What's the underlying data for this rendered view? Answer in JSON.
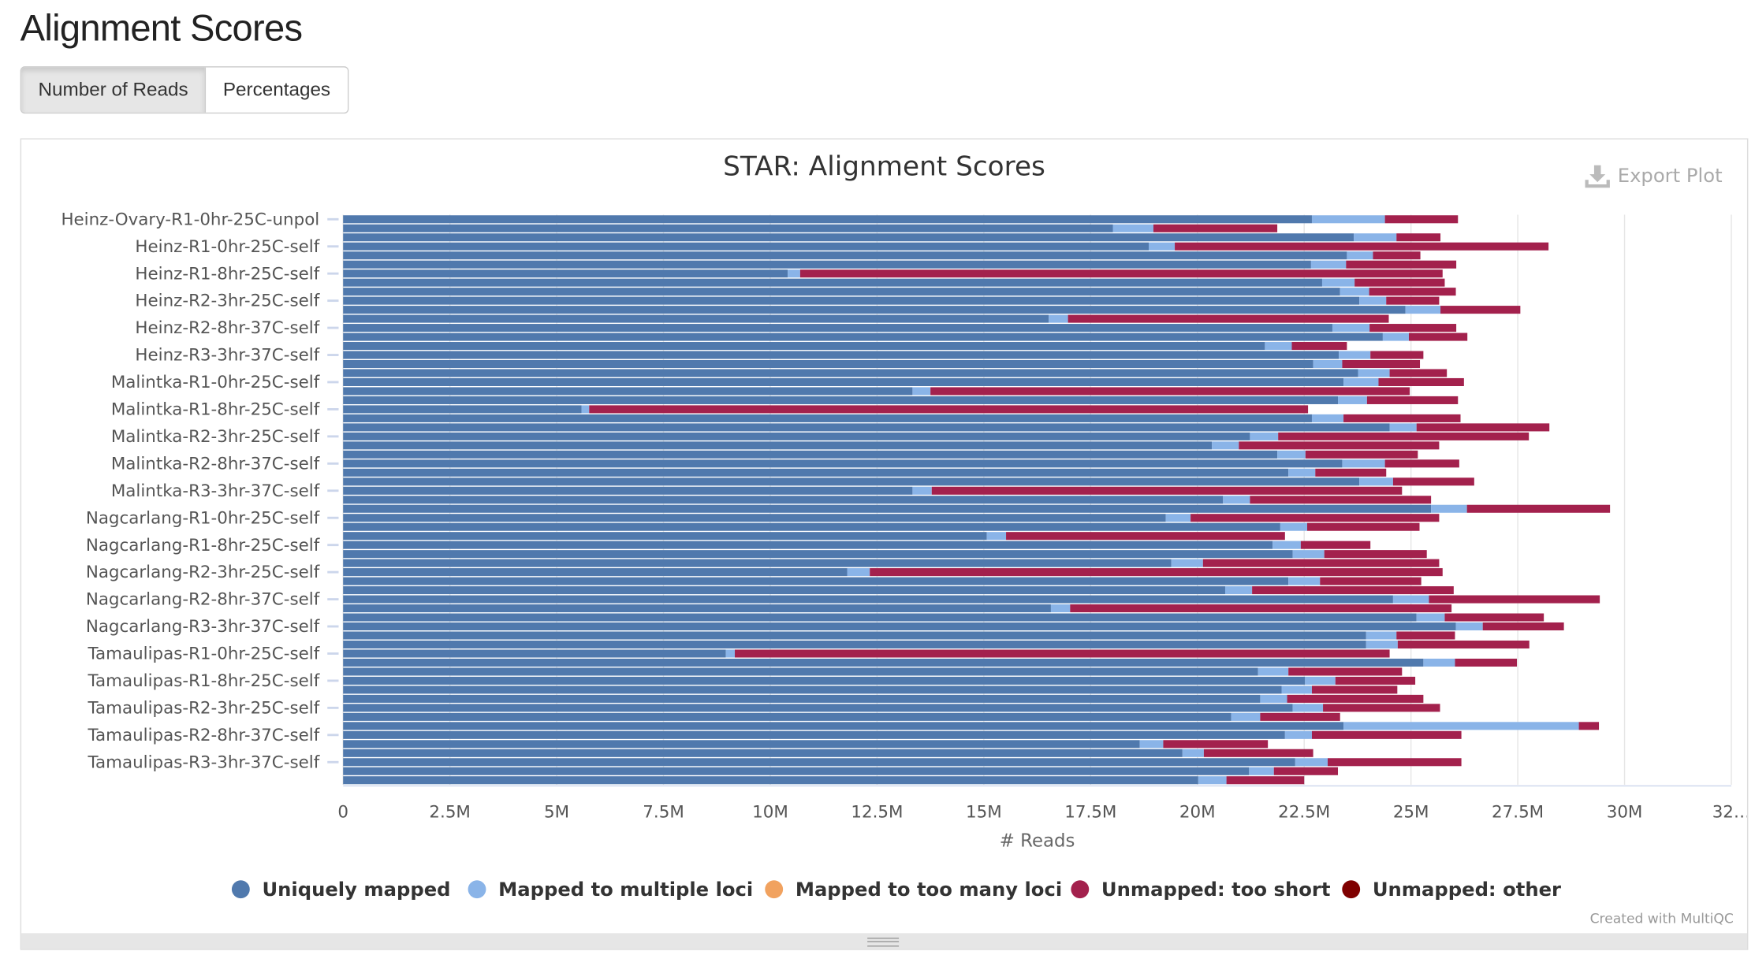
{
  "page_title": "Alignment Scores",
  "toggle_buttons": [
    {
      "label": "Number of Reads",
      "active": true
    },
    {
      "label": "Percentages",
      "active": false
    }
  ],
  "export_label": "Export Plot",
  "credit": "Created with MultiQC",
  "chart_data": {
    "type": "bar",
    "orientation": "horizontal",
    "stacked": true,
    "title": "STAR: Alignment Scores",
    "xlabel": "# Reads",
    "ylabel": "",
    "xlim": [
      0,
      32500000
    ],
    "xticks": [
      "0",
      "2.5M",
      "5M",
      "7.5M",
      "10M",
      "12.5M",
      "15M",
      "17.5M",
      "20M",
      "22.5M",
      "25M",
      "27.5M",
      "30M",
      "32…"
    ],
    "grid": true,
    "legend_position": "bottom",
    "units": "millions of reads",
    "series": [
      {
        "name": "Uniquely mapped",
        "color": "#5079ad"
      },
      {
        "name": "Mapped to multiple loci",
        "color": "#8ab4e8"
      },
      {
        "name": "Mapped to too many loci",
        "color": "#f1a25f"
      },
      {
        "name": "Unmapped: too short",
        "color": "#a3214d"
      },
      {
        "name": "Unmapped: other",
        "color": "#7f0000"
      }
    ],
    "visible_labels": [
      "Heinz-Ovary-R1-0hr-25C-unpol",
      "Heinz-R1-0hr-25C-self",
      "Heinz-R1-8hr-25C-self",
      "Heinz-R2-3hr-25C-self",
      "Heinz-R2-8hr-37C-self",
      "Heinz-R3-3hr-37C-self",
      "Malintka-R1-0hr-25C-self",
      "Malintka-R1-8hr-25C-self",
      "Malintka-R2-3hr-25C-self",
      "Malintka-R2-8hr-37C-self",
      "Malintka-R3-3hr-37C-self",
      "Nagcarlang-R1-0hr-25C-self",
      "Nagcarlang-R1-8hr-25C-self",
      "Nagcarlang-R2-3hr-25C-self",
      "Nagcarlang-R2-8hr-37C-self",
      "Nagcarlang-R3-3hr-37C-self",
      "Tamaulipas-R1-0hr-25C-self",
      "Tamaulipas-R1-8hr-25C-self",
      "Tamaulipas-R2-3hr-25C-self",
      "Tamaulipas-R2-8hr-37C-self",
      "Tamaulipas-R3-3hr-37C-self"
    ],
    "label_every": 3,
    "bars": [
      [
        22.68,
        1.71,
        0,
        1.71,
        0
      ],
      [
        18.02,
        0.95,
        0,
        2.9,
        0
      ],
      [
        23.66,
        1.0,
        0,
        1.03,
        0
      ],
      [
        18.86,
        0.61,
        0,
        8.75,
        0
      ],
      [
        23.5,
        0.61,
        0,
        1.11,
        0
      ],
      [
        22.66,
        0.82,
        0,
        2.58,
        0
      ],
      [
        10.41,
        0.29,
        0,
        15.04,
        0
      ],
      [
        22.92,
        0.76,
        0,
        2.11,
        0
      ],
      [
        23.34,
        0.68,
        0,
        2.03,
        0
      ],
      [
        23.79,
        0.63,
        0,
        1.24,
        0
      ],
      [
        24.87,
        0.82,
        0,
        1.87,
        0
      ],
      [
        16.52,
        0.45,
        0,
        7.51,
        0
      ],
      [
        23.16,
        0.87,
        0,
        2.03,
        0
      ],
      [
        24.34,
        0.61,
        0,
        1.37,
        0
      ],
      [
        21.58,
        0.63,
        0,
        1.29,
        0
      ],
      [
        23.31,
        0.74,
        0,
        1.24,
        0
      ],
      [
        22.71,
        0.68,
        0,
        1.82,
        0
      ],
      [
        23.76,
        0.74,
        0,
        1.34,
        0
      ],
      [
        23.42,
        0.82,
        0,
        2.0,
        0
      ],
      [
        13.33,
        0.42,
        0,
        11.22,
        0
      ],
      [
        23.29,
        0.68,
        0,
        2.13,
        0
      ],
      [
        5.58,
        0.18,
        0,
        16.83,
        0
      ],
      [
        22.68,
        0.74,
        0,
        2.74,
        0
      ],
      [
        24.5,
        0.63,
        0,
        3.11,
        0
      ],
      [
        21.23,
        0.66,
        0,
        5.87,
        0
      ],
      [
        20.34,
        0.63,
        0,
        4.69,
        0
      ],
      [
        21.87,
        0.66,
        0,
        2.63,
        0
      ],
      [
        23.39,
        1.0,
        0,
        1.74,
        0
      ],
      [
        22.13,
        0.63,
        0,
        1.66,
        0
      ],
      [
        23.79,
        0.79,
        0,
        1.9,
        0
      ],
      [
        13.33,
        0.45,
        0,
        11.01,
        0
      ],
      [
        20.6,
        0.63,
        0,
        4.24,
        0
      ],
      [
        25.47,
        0.84,
        0,
        3.35,
        0
      ],
      [
        19.26,
        0.58,
        0,
        5.82,
        0
      ],
      [
        21.94,
        0.63,
        0,
        2.63,
        0
      ],
      [
        15.07,
        0.45,
        0,
        6.53,
        0
      ],
      [
        21.76,
        0.66,
        0,
        1.63,
        0
      ],
      [
        22.23,
        0.74,
        0,
        2.4,
        0
      ],
      [
        19.39,
        0.74,
        0,
        5.53,
        0
      ],
      [
        11.8,
        0.53,
        0,
        13.41,
        0
      ],
      [
        22.13,
        0.74,
        0,
        2.37,
        0
      ],
      [
        20.65,
        0.63,
        0,
        4.72,
        0
      ],
      [
        24.58,
        0.84,
        0,
        4.0,
        0
      ],
      [
        16.57,
        0.45,
        0,
        8.93,
        0
      ],
      [
        25.13,
        0.66,
        0,
        2.32,
        0
      ],
      [
        26.05,
        0.63,
        0,
        1.9,
        0
      ],
      [
        23.95,
        0.71,
        0,
        1.37,
        0
      ],
      [
        23.95,
        0.74,
        0,
        3.08,
        0
      ],
      [
        8.96,
        0.21,
        0,
        15.33,
        0
      ],
      [
        25.29,
        0.74,
        0,
        1.45,
        0
      ],
      [
        21.42,
        0.71,
        0,
        2.66,
        0
      ],
      [
        22.52,
        0.71,
        0,
        1.87,
        0
      ],
      [
        21.97,
        0.71,
        0,
        2.0,
        0
      ],
      [
        21.47,
        0.63,
        0,
        3.19,
        0
      ],
      [
        22.23,
        0.71,
        0,
        2.74,
        0
      ],
      [
        20.79,
        0.68,
        0,
        1.87,
        0
      ],
      [
        23.42,
        5.51,
        0,
        0.47,
        0
      ],
      [
        22.05,
        0.63,
        0,
        3.5,
        0
      ],
      [
        18.65,
        0.55,
        0,
        2.45,
        0
      ],
      [
        19.65,
        0.5,
        0,
        2.56,
        0
      ],
      [
        22.29,
        0.76,
        0,
        3.13,
        0
      ],
      [
        21.21,
        0.58,
        0,
        1.5,
        0
      ],
      [
        20.02,
        0.66,
        0,
        1.82,
        0
      ]
    ]
  }
}
